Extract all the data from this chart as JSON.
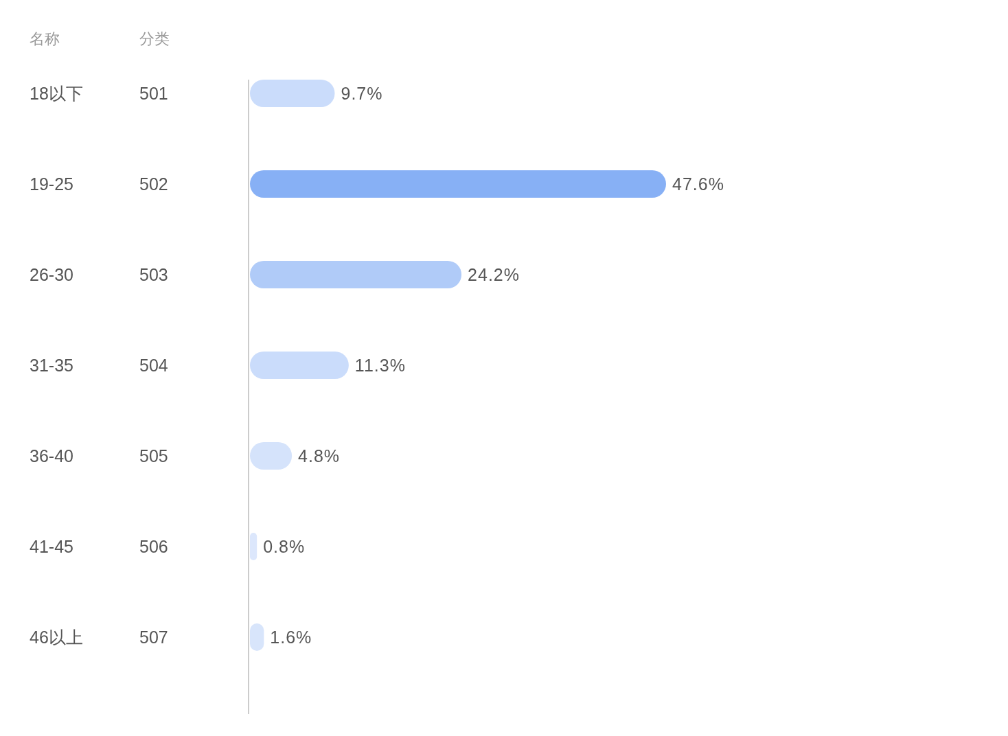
{
  "chart_data": {
    "type": "bar",
    "orientation": "horizontal",
    "ylabel": "名称",
    "y2label": "分类",
    "categories": [
      "18以下",
      "19-25",
      "26-30",
      "31-35",
      "36-40",
      "41-45",
      "46以上"
    ],
    "y2_categories": [
      "501",
      "502",
      "503",
      "504",
      "505",
      "506",
      "507"
    ],
    "values": [
      9.7,
      47.6,
      24.2,
      11.3,
      4.8,
      0.8,
      1.6
    ],
    "value_labels": [
      "9.7%",
      "47.6%",
      "24.2%",
      "11.3%",
      "4.8%",
      "0.8%",
      "1.6%"
    ],
    "colors": [
      "#cadcfb",
      "#87b0f5",
      "#b0cbf8",
      "#cadcfb",
      "#d5e3fb",
      "#dce7fc",
      "#d8e5fb"
    ]
  }
}
